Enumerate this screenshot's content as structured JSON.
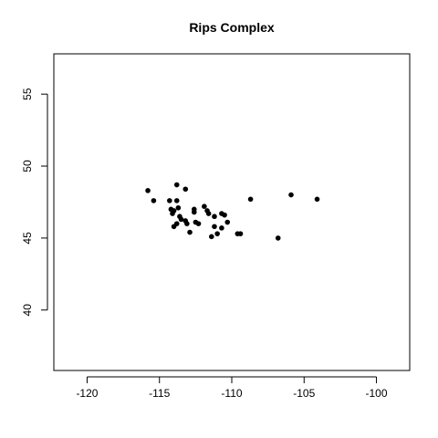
{
  "chart_data": {
    "type": "scatter",
    "title": "Rips Complex",
    "xlabel": "",
    "ylabel": "",
    "xlim": [
      -122.3,
      -97.7
    ],
    "ylim": [
      35.8,
      57.8
    ],
    "xticks": [
      -120,
      -115,
      -110,
      -105,
      -100
    ],
    "yticks": [
      40,
      45,
      50,
      55
    ],
    "xtick_labels": [
      "-120",
      "-115",
      "-110",
      "-105",
      "-100"
    ],
    "ytick_labels": [
      "40",
      "45",
      "50",
      "55"
    ],
    "grid": false,
    "point_color": "#000000",
    "points": [
      {
        "x": -115.8,
        "y": 48.3
      },
      {
        "x": -115.4,
        "y": 47.6
      },
      {
        "x": -114.3,
        "y": 47.6
      },
      {
        "x": -113.8,
        "y": 48.7
      },
      {
        "x": -113.2,
        "y": 48.4
      },
      {
        "x": -114.2,
        "y": 47.0
      },
      {
        "x": -114.0,
        "y": 46.9
      },
      {
        "x": -113.8,
        "y": 47.6
      },
      {
        "x": -113.7,
        "y": 47.1
      },
      {
        "x": -114.1,
        "y": 46.7
      },
      {
        "x": -113.6,
        "y": 46.5
      },
      {
        "x": -113.5,
        "y": 46.3
      },
      {
        "x": -114.0,
        "y": 45.8
      },
      {
        "x": -113.8,
        "y": 46.0
      },
      {
        "x": -113.2,
        "y": 46.2
      },
      {
        "x": -113.1,
        "y": 46.0
      },
      {
        "x": -112.9,
        "y": 45.4
      },
      {
        "x": -112.6,
        "y": 47.0
      },
      {
        "x": -112.6,
        "y": 46.8
      },
      {
        "x": -112.5,
        "y": 46.1
      },
      {
        "x": -112.3,
        "y": 46.0
      },
      {
        "x": -111.9,
        "y": 47.2
      },
      {
        "x": -111.7,
        "y": 46.9
      },
      {
        "x": -111.6,
        "y": 46.7
      },
      {
        "x": -111.2,
        "y": 46.5
      },
      {
        "x": -111.2,
        "y": 45.8
      },
      {
        "x": -111.4,
        "y": 45.1
      },
      {
        "x": -111.0,
        "y": 45.3
      },
      {
        "x": -110.7,
        "y": 46.7
      },
      {
        "x": -110.5,
        "y": 46.6
      },
      {
        "x": -110.3,
        "y": 46.1
      },
      {
        "x": -110.7,
        "y": 45.7
      },
      {
        "x": -109.6,
        "y": 45.3
      },
      {
        "x": -109.4,
        "y": 45.3
      },
      {
        "x": -108.7,
        "y": 47.7
      },
      {
        "x": -106.8,
        "y": 45.0
      },
      {
        "x": -105.9,
        "y": 48.0
      },
      {
        "x": -104.1,
        "y": 47.7
      }
    ]
  }
}
